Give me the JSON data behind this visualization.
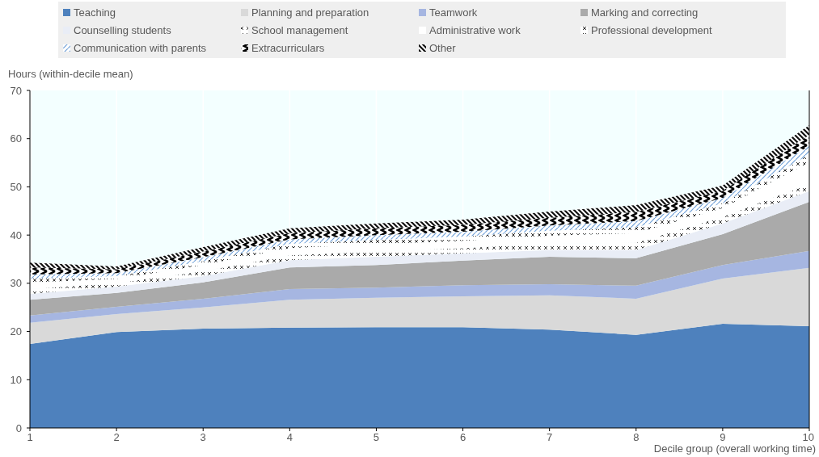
{
  "chart_data": {
    "type": "area",
    "stacked": true,
    "ylabel": "Hours (within-decile mean)",
    "xlabel": "Decile group (overall working time)",
    "x": [
      1,
      2,
      3,
      4,
      5,
      6,
      7,
      8,
      9,
      10
    ],
    "xlim": [
      1,
      10
    ],
    "xticks": [
      1,
      2,
      3,
      4,
      5,
      6,
      7,
      8,
      9,
      10
    ],
    "ylim": [
      0,
      70
    ],
    "yticks": [
      0,
      10,
      20,
      30,
      40,
      50,
      60,
      70
    ],
    "grid": "x",
    "legend": "top",
    "series": [
      {
        "name": "Teaching",
        "color": "#4e81bd",
        "values": [
          17.4,
          19.9,
          20.6,
          20.8,
          20.9,
          20.9,
          20.4,
          19.3,
          21.6,
          21.1
        ]
      },
      {
        "name": "Planning and preparation",
        "color": "#d9d9d9",
        "values": [
          4.4,
          3.7,
          4.4,
          5.8,
          6.1,
          6.4,
          7.1,
          7.5,
          9.4,
          12.1
        ]
      },
      {
        "name": "Teamwork",
        "color": "#a6b6e1",
        "values": [
          1.5,
          1.5,
          1.8,
          2.2,
          2.1,
          2.3,
          2.3,
          2.7,
          2.8,
          3.5
        ]
      },
      {
        "name": "Marking and correcting",
        "color": "#aaaaaa",
        "values": [
          3.3,
          2.9,
          3.4,
          4.5,
          4.7,
          5.1,
          5.7,
          5.7,
          6.4,
          10.2
        ]
      },
      {
        "name": "Counselling students",
        "color": "#e9edf6",
        "values": [
          1.2,
          1.3,
          1.3,
          1.5,
          1.7,
          1.5,
          1.4,
          1.7,
          2.2,
          2.2
        ]
      },
      {
        "name": "School management",
        "color": "#404040",
        "values": [
          1.0,
          0.7,
          1.0,
          1.0,
          1.1,
          1.1,
          1.3,
          1.5,
          1.4,
          1.5
        ]
      },
      {
        "name": "Administrative work",
        "color": "#ffffff",
        "values": [
          1.4,
          0.9,
          1.3,
          1.5,
          1.5,
          1.5,
          1.7,
          2.0,
          1.8,
          4.5
        ]
      },
      {
        "name": "Professional development",
        "color": "#333333",
        "values": [
          0.8,
          0.6,
          0.8,
          0.9,
          0.9,
          0.9,
          1.0,
          1.2,
          1.0,
          1.6
        ]
      },
      {
        "name": "Communication with parents",
        "color": "#6fa0d8",
        "values": [
          0.8,
          0.6,
          0.8,
          0.9,
          1.0,
          1.0,
          1.1,
          1.3,
          1.1,
          1.8
        ]
      },
      {
        "name": "Extracurriculars",
        "color": "#000000",
        "values": [
          1.5,
          0.8,
          1.2,
          1.3,
          1.4,
          1.4,
          1.6,
          1.9,
          1.5,
          2.3
        ]
      },
      {
        "name": "Other",
        "color": "#111111",
        "values": [
          1.0,
          0.6,
          0.9,
          1.0,
          1.0,
          1.1,
          1.3,
          1.4,
          1.1,
          2.0
        ]
      }
    ]
  }
}
